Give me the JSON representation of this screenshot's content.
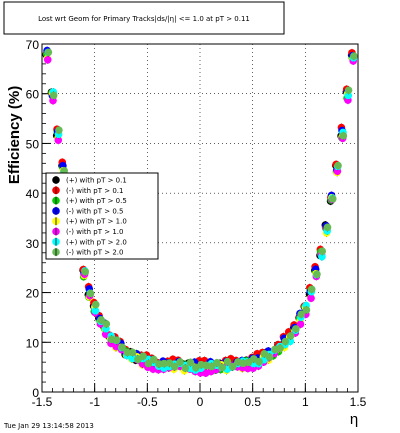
{
  "chart_data": {
    "type": "scatter",
    "title": "Lost wrt Geom for Primary Tracks|ds/|η| <= 1.0 at pT > 0.11",
    "xlabel": "η",
    "ylabel": "Efficiency (%)",
    "xlim": [
      -1.5,
      1.5
    ],
    "ylim": [
      0,
      70
    ],
    "x_ticks": [
      "-1.5",
      "-1",
      "-0.5",
      "0",
      "0.5",
      "1",
      "1.5"
    ],
    "y_ticks": [
      "0",
      "10",
      "20",
      "30",
      "40",
      "50",
      "60",
      "70"
    ],
    "grid": true,
    "legend_position": "middle-left",
    "footer": "Tue Jan 29 13:14:58 2013",
    "series": [
      {
        "name": "(+) with pT > 0.1",
        "color": "#000000",
        "offset": 0.0
      },
      {
        "name": "(-) with pT > 0.1",
        "color": "#ff0000",
        "offset": 0.6
      },
      {
        "name": "(+) with pT > 0.5",
        "color": "#00cc00",
        "offset": -0.3
      },
      {
        "name": "(-) with pT > 0.5",
        "color": "#0000ff",
        "offset": 0.2
      },
      {
        "name": "(+) with pT > 1.0",
        "color": "#ffff00",
        "offset": -0.5
      },
      {
        "name": "(-) with pT > 1.0",
        "color": "#ff00ff",
        "offset": -0.8
      },
      {
        "name": "(+) with pT > 2.0",
        "color": "#00ffff",
        "offset": -0.2
      },
      {
        "name": "(-) with pT > 2.0",
        "color": "#66bb55",
        "offset": 0.1
      }
    ],
    "eta_curve": {
      "x": [
        -1.45,
        -1.4,
        -1.35,
        -1.3,
        -1.25,
        -1.2,
        -1.15,
        -1.1,
        -1.05,
        -1.0,
        -0.95,
        -0.9,
        -0.85,
        -0.8,
        -0.75,
        -0.7,
        -0.65,
        -0.6,
        -0.55,
        -0.5,
        -0.45,
        -0.4,
        -0.35,
        -0.3,
        -0.25,
        -0.2,
        -0.15,
        -0.1,
        -0.05,
        0.0,
        0.05,
        0.1,
        0.15,
        0.2,
        0.25,
        0.3,
        0.35,
        0.4,
        0.45,
        0.5,
        0.55,
        0.6,
        0.65,
        0.7,
        0.75,
        0.8,
        0.85,
        0.9,
        0.95,
        1.0,
        1.05,
        1.1,
        1.15,
        1.2,
        1.25,
        1.3,
        1.35,
        1.4,
        1.45
      ],
      "y": [
        68,
        60,
        52,
        45,
        39,
        33,
        28,
        24,
        20,
        17,
        15,
        13,
        11,
        10,
        9,
        8,
        7.5,
        7,
        6.5,
        6.2,
        6.0,
        5.8,
        5.6,
        5.5,
        5.4,
        5.4,
        5.3,
        5.3,
        5.2,
        5.2,
        5.2,
        5.3,
        5.3,
        5.4,
        5.4,
        5.5,
        5.6,
        5.8,
        6.0,
        6.2,
        6.5,
        7,
        7.5,
        8,
        9,
        10,
        11,
        13,
        15,
        17,
        20,
        24,
        28,
        33,
        39,
        45,
        52,
        60,
        68
      ]
    }
  }
}
